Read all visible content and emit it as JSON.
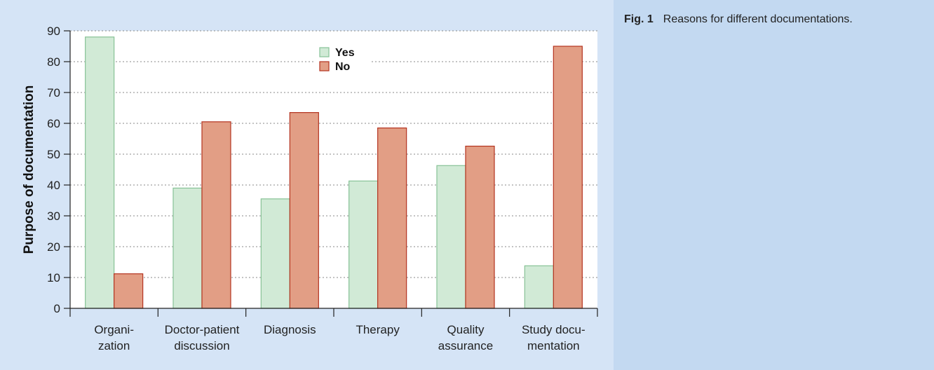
{
  "caption": {
    "label": "Fig. 1",
    "text": "Reasons for different documentations."
  },
  "colors": {
    "yes_fill": "#d1ead6",
    "yes_stroke": "#87c296",
    "no_fill": "#e29e85",
    "no_stroke": "#b4331f",
    "plot_background": "#ffffff",
    "panel_background": "#d5e4f6",
    "caption_background": "#c3d9f1"
  },
  "chart_data": {
    "type": "bar",
    "title": "",
    "xlabel": "",
    "ylabel": "Purpose of documentation",
    "ylim": [
      0,
      90
    ],
    "yticks": [
      0,
      10,
      20,
      30,
      40,
      50,
      60,
      70,
      80,
      90
    ],
    "grid": "horizontal-dotted",
    "legend_position": "top-center",
    "categories": [
      [
        "Organi-",
        "zation"
      ],
      [
        "Doctor-patient",
        "discussion"
      ],
      [
        "Diagnosis"
      ],
      [
        "Therapy"
      ],
      [
        "Quality",
        "assurance"
      ],
      [
        "Study docu-",
        "mentation"
      ]
    ],
    "series": [
      {
        "name": "Yes",
        "values": [
          88,
          39,
          35.5,
          41.3,
          46.3,
          13.8
        ]
      },
      {
        "name": "No",
        "values": [
          11.2,
          60.5,
          63.5,
          58.5,
          52.6,
          85
        ]
      }
    ]
  }
}
